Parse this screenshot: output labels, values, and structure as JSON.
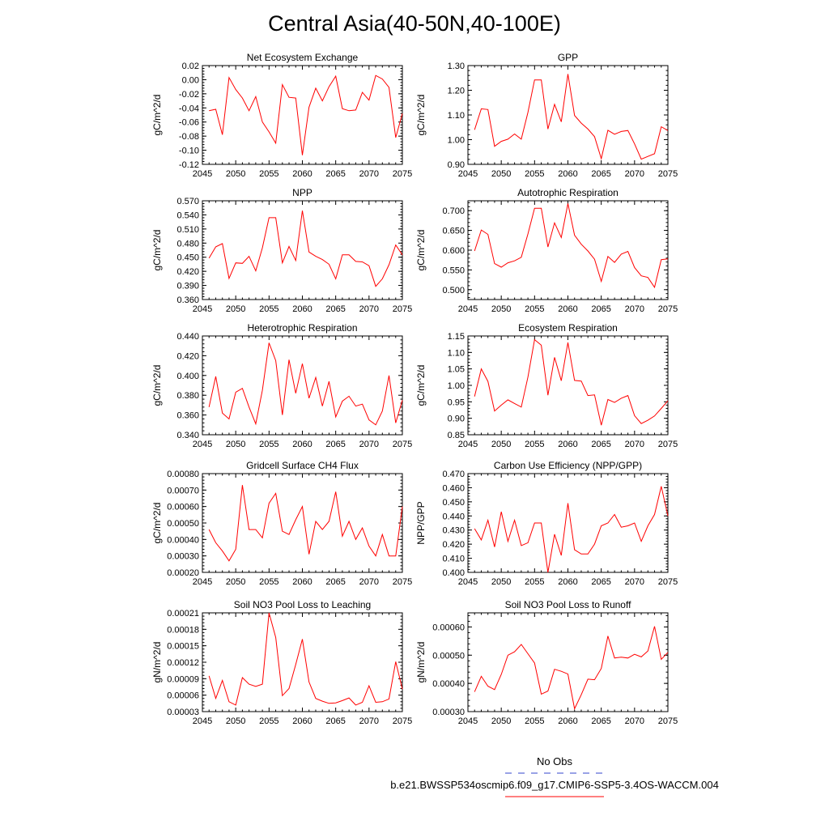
{
  "figure_title": "Central Asia(40-50N,40-100E)",
  "legend": {
    "obs_label": "No Obs",
    "obs_color": "#3344cc",
    "model_label": "b.e21.BWSSP534oscmip6.f09_g17.CMIP6-SSP5-3.4OS-WACCM.004",
    "model_color": "#ff0000"
  },
  "chart_data": [
    {
      "type": "line",
      "title": "Net Ecosystem Exchange",
      "ylabel": "gC/m^2/d",
      "xlim": [
        2045,
        2075
      ],
      "ylim": [
        -0.12,
        0.02
      ],
      "xticks": [
        2045,
        2050,
        2055,
        2060,
        2065,
        2070,
        2075
      ],
      "xtick_labels": [
        "2045",
        "2050",
        "2055",
        "2060",
        "2065",
        "2070",
        "2075"
      ],
      "yticks": [
        -0.12,
        -0.1,
        -0.08,
        -0.06,
        -0.04,
        -0.02,
        0.0,
        0.02
      ],
      "ytick_labels": [
        "-0.12",
        "-0.10",
        "-0.08",
        "-0.06",
        "-0.04",
        "-0.02",
        "0.00",
        "0.02"
      ],
      "x": [
        2046,
        2047,
        2048,
        2049,
        2050,
        2051,
        2052,
        2053,
        2054,
        2055,
        2056,
        2057,
        2058,
        2059,
        2060,
        2061,
        2062,
        2063,
        2064,
        2065,
        2066,
        2067,
        2068,
        2069,
        2070,
        2071,
        2072,
        2073,
        2074,
        2075
      ],
      "y": [
        -0.044,
        -0.042,
        -0.078,
        0.003,
        -0.014,
        -0.026,
        -0.044,
        -0.024,
        -0.06,
        -0.074,
        -0.09,
        -0.007,
        -0.025,
        -0.026,
        -0.107,
        -0.039,
        -0.012,
        -0.03,
        -0.01,
        0.005,
        -0.041,
        -0.044,
        -0.043,
        -0.018,
        -0.029,
        0.006,
        0.001,
        -0.011,
        -0.082,
        -0.048
      ]
    },
    {
      "type": "line",
      "title": "GPP",
      "ylabel": "gC/m^2/d",
      "xlim": [
        2045,
        2075
      ],
      "ylim": [
        0.9,
        1.3
      ],
      "xticks": [
        2045,
        2050,
        2055,
        2060,
        2065,
        2070,
        2075
      ],
      "xtick_labels": [
        "2045",
        "2050",
        "2055",
        "2060",
        "2065",
        "2070",
        "2075"
      ],
      "yticks": [
        0.9,
        1.0,
        1.1,
        1.2,
        1.3
      ],
      "ytick_labels": [
        "0.90",
        "1.00",
        "1.10",
        "1.20",
        "1.30"
      ],
      "x": [
        2046,
        2047,
        2048,
        2049,
        2050,
        2051,
        2052,
        2053,
        2054,
        2055,
        2056,
        2057,
        2058,
        2059,
        2060,
        2061,
        2062,
        2063,
        2064,
        2065,
        2066,
        2067,
        2068,
        2069,
        2070,
        2071,
        2072,
        2073,
        2074,
        2075
      ],
      "y": [
        1.04,
        1.125,
        1.122,
        0.973,
        0.993,
        1.002,
        1.023,
        1.002,
        1.11,
        1.242,
        1.242,
        1.043,
        1.143,
        1.072,
        1.266,
        1.098,
        1.067,
        1.043,
        1.012,
        0.923,
        1.038,
        1.022,
        1.033,
        1.037,
        0.983,
        0.921,
        0.932,
        0.943,
        1.052,
        1.037
      ]
    },
    {
      "type": "line",
      "title": "NPP",
      "ylabel": "gC/m^2/d",
      "xlim": [
        2045,
        2075
      ],
      "ylim": [
        0.36,
        0.57
      ],
      "xticks": [
        2045,
        2050,
        2055,
        2060,
        2065,
        2070,
        2075
      ],
      "xtick_labels": [
        "2045",
        "2050",
        "2055",
        "2060",
        "2065",
        "2070",
        "2075"
      ],
      "yticks": [
        0.36,
        0.39,
        0.42,
        0.45,
        0.48,
        0.51,
        0.54,
        0.57
      ],
      "ytick_labels": [
        "0.360",
        "0.390",
        "0.420",
        "0.450",
        "0.480",
        "0.510",
        "0.540",
        "0.570"
      ],
      "x": [
        2046,
        2047,
        2048,
        2049,
        2050,
        2051,
        2052,
        2053,
        2054,
        2055,
        2056,
        2057,
        2058,
        2059,
        2060,
        2061,
        2062,
        2063,
        2064,
        2065,
        2066,
        2067,
        2068,
        2069,
        2070,
        2071,
        2072,
        2073,
        2074,
        2075
      ],
      "y": [
        0.448,
        0.472,
        0.479,
        0.405,
        0.438,
        0.437,
        0.452,
        0.421,
        0.47,
        0.534,
        0.534,
        0.438,
        0.473,
        0.443,
        0.549,
        0.461,
        0.452,
        0.445,
        0.435,
        0.404,
        0.455,
        0.455,
        0.441,
        0.44,
        0.432,
        0.388,
        0.404,
        0.434,
        0.476,
        0.455
      ]
    },
    {
      "type": "line",
      "title": "Autotrophic Respiration",
      "ylabel": "gC/m^2/d",
      "xlim": [
        2045,
        2075
      ],
      "ylim": [
        0.475,
        0.725
      ],
      "xticks": [
        2045,
        2050,
        2055,
        2060,
        2065,
        2070,
        2075
      ],
      "xtick_labels": [
        "2045",
        "2050",
        "2055",
        "2060",
        "2065",
        "2070",
        "2075"
      ],
      "yticks": [
        0.5,
        0.55,
        0.6,
        0.65,
        0.7
      ],
      "ytick_labels": [
        "0.500",
        "0.550",
        "0.600",
        "0.650",
        "0.700"
      ],
      "x": [
        2046,
        2047,
        2048,
        2049,
        2050,
        2051,
        2052,
        2053,
        2054,
        2055,
        2056,
        2057,
        2058,
        2059,
        2060,
        2061,
        2062,
        2063,
        2064,
        2065,
        2066,
        2067,
        2068,
        2069,
        2070,
        2071,
        2072,
        2073,
        2074,
        2075
      ],
      "y": [
        0.598,
        0.651,
        0.64,
        0.566,
        0.557,
        0.568,
        0.573,
        0.582,
        0.641,
        0.706,
        0.706,
        0.608,
        0.669,
        0.632,
        0.718,
        0.638,
        0.615,
        0.598,
        0.577,
        0.521,
        0.584,
        0.569,
        0.59,
        0.597,
        0.556,
        0.535,
        0.531,
        0.506,
        0.576,
        0.578
      ]
    },
    {
      "type": "line",
      "title": "Heterotrophic Respiration",
      "ylabel": "gC/m^2/d",
      "xlim": [
        2045,
        2075
      ],
      "ylim": [
        0.34,
        0.44
      ],
      "xticks": [
        2045,
        2050,
        2055,
        2060,
        2065,
        2070,
        2075
      ],
      "xtick_labels": [
        "2045",
        "2050",
        "2055",
        "2060",
        "2065",
        "2070",
        "2075"
      ],
      "yticks": [
        0.34,
        0.36,
        0.38,
        0.4,
        0.42,
        0.44
      ],
      "ytick_labels": [
        "0.340",
        "0.360",
        "0.380",
        "0.400",
        "0.420",
        "0.440"
      ],
      "x": [
        2046,
        2047,
        2048,
        2049,
        2050,
        2051,
        2052,
        2053,
        2054,
        2055,
        2056,
        2057,
        2058,
        2059,
        2060,
        2061,
        2062,
        2063,
        2064,
        2065,
        2066,
        2067,
        2068,
        2069,
        2070,
        2071,
        2072,
        2073,
        2074,
        2075
      ],
      "y": [
        0.368,
        0.399,
        0.362,
        0.356,
        0.383,
        0.387,
        0.368,
        0.351,
        0.385,
        0.433,
        0.415,
        0.36,
        0.416,
        0.382,
        0.412,
        0.377,
        0.398,
        0.369,
        0.394,
        0.358,
        0.374,
        0.379,
        0.369,
        0.371,
        0.355,
        0.35,
        0.364,
        0.4,
        0.352,
        0.375
      ]
    },
    {
      "type": "line",
      "title": "Ecosystem Respiration",
      "ylabel": "gC/m^2/d",
      "xlim": [
        2045,
        2075
      ],
      "ylim": [
        0.85,
        1.15
      ],
      "xticks": [
        2045,
        2050,
        2055,
        2060,
        2065,
        2070,
        2075
      ],
      "xtick_labels": [
        "2045",
        "2050",
        "2055",
        "2060",
        "2065",
        "2070",
        "2075"
      ],
      "yticks": [
        0.85,
        0.9,
        0.95,
        1.0,
        1.05,
        1.1,
        1.15
      ],
      "ytick_labels": [
        "0.85",
        "0.90",
        "0.95",
        "1.00",
        "1.05",
        "1.10",
        "1.15"
      ],
      "x": [
        2046,
        2047,
        2048,
        2049,
        2050,
        2051,
        2052,
        2053,
        2054,
        2055,
        2056,
        2057,
        2058,
        2059,
        2060,
        2061,
        2062,
        2063,
        2064,
        2065,
        2066,
        2067,
        2068,
        2069,
        2070,
        2071,
        2072,
        2073,
        2074,
        2075
      ],
      "y": [
        0.966,
        1.05,
        1.012,
        0.922,
        0.94,
        0.956,
        0.945,
        0.934,
        1.025,
        1.139,
        1.122,
        0.97,
        1.085,
        1.014,
        1.13,
        1.015,
        1.013,
        0.969,
        0.971,
        0.879,
        0.957,
        0.948,
        0.961,
        0.969,
        0.908,
        0.884,
        0.894,
        0.907,
        0.93,
        0.953
      ]
    },
    {
      "type": "line",
      "title": "Gridcell Surface CH4 Flux",
      "ylabel": "gC/m^2/d",
      "xlim": [
        2045,
        2075
      ],
      "ylim": [
        0.0002,
        0.0008
      ],
      "xticks": [
        2045,
        2050,
        2055,
        2060,
        2065,
        2070,
        2075
      ],
      "xtick_labels": [
        "2045",
        "2050",
        "2055",
        "2060",
        "2065",
        "2070",
        "2075"
      ],
      "yticks": [
        0.0002,
        0.0003,
        0.0004,
        0.0005,
        0.0006,
        0.0007,
        0.0008
      ],
      "ytick_labels": [
        "0.00020",
        "0.00030",
        "0.00040",
        "0.00050",
        "0.00060",
        "0.00070",
        "0.00080"
      ],
      "x": [
        2046,
        2047,
        2048,
        2049,
        2050,
        2051,
        2052,
        2053,
        2054,
        2055,
        2056,
        2057,
        2058,
        2059,
        2060,
        2061,
        2062,
        2063,
        2064,
        2065,
        2066,
        2067,
        2068,
        2069,
        2070,
        2071,
        2072,
        2073,
        2074,
        2075
      ],
      "y": [
        0.00046,
        0.00038,
        0.00033,
        0.00027,
        0.00034,
        0.00073,
        0.00046,
        0.00046,
        0.00041,
        0.00062,
        0.00068,
        0.00045,
        0.00043,
        0.00052,
        0.0006,
        0.00031,
        0.00051,
        0.00046,
        0.00051,
        0.00069,
        0.00042,
        0.00051,
        0.0004,
        0.00047,
        0.00036,
        0.0003,
        0.00043,
        0.0003,
        0.0003,
        0.0006
      ]
    },
    {
      "type": "line",
      "title": "Carbon Use Efficiency (NPP/GPP)",
      "ylabel": "NPP/GPP",
      "xlim": [
        2045,
        2075
      ],
      "ylim": [
        0.4,
        0.47
      ],
      "xticks": [
        2045,
        2050,
        2055,
        2060,
        2065,
        2070,
        2075
      ],
      "xtick_labels": [
        "2045",
        "2050",
        "2055",
        "2060",
        "2065",
        "2070",
        "2075"
      ],
      "yticks": [
        0.4,
        0.41,
        0.42,
        0.43,
        0.44,
        0.45,
        0.46,
        0.47
      ],
      "ytick_labels": [
        "0.400",
        "0.410",
        "0.420",
        "0.430",
        "0.440",
        "0.450",
        "0.460",
        "0.470"
      ],
      "x": [
        2046,
        2047,
        2048,
        2049,
        2050,
        2051,
        2052,
        2053,
        2054,
        2055,
        2056,
        2057,
        2058,
        2059,
        2060,
        2061,
        2062,
        2063,
        2064,
        2065,
        2066,
        2067,
        2068,
        2069,
        2070,
        2071,
        2072,
        2073,
        2074,
        2075
      ],
      "y": [
        0.431,
        0.423,
        0.437,
        0.418,
        0.443,
        0.422,
        0.437,
        0.419,
        0.421,
        0.435,
        0.435,
        0.4,
        0.427,
        0.412,
        0.449,
        0.416,
        0.413,
        0.413,
        0.42,
        0.433,
        0.435,
        0.441,
        0.432,
        0.433,
        0.435,
        0.422,
        0.433,
        0.441,
        0.461,
        0.44
      ]
    },
    {
      "type": "line",
      "title": "Soil NO3 Pool Loss to Leaching",
      "ylabel": "gN/m^2/d",
      "xlim": [
        2045,
        2075
      ],
      "ylim": [
        3e-05,
        0.00021
      ],
      "xticks": [
        2045,
        2050,
        2055,
        2060,
        2065,
        2070,
        2075
      ],
      "xtick_labels": [
        "2045",
        "2050",
        "2055",
        "2060",
        "2065",
        "2070",
        "2075"
      ],
      "yticks": [
        3e-05,
        6e-05,
        9e-05,
        0.00012,
        0.00015,
        0.00018,
        0.00021
      ],
      "ytick_labels": [
        "0.00003",
        "0.00006",
        "0.00009",
        "0.00012",
        "0.00015",
        "0.00018",
        "0.00021"
      ],
      "x": [
        2046,
        2047,
        2048,
        2049,
        2050,
        2051,
        2052,
        2053,
        2054,
        2055,
        2056,
        2057,
        2058,
        2059,
        2060,
        2061,
        2062,
        2063,
        2064,
        2065,
        2066,
        2067,
        2068,
        2069,
        2070,
        2071,
        2072,
        2073,
        2074,
        2075
      ],
      "y": [
        9.5e-05,
        5.4e-05,
        8.7e-05,
        4.8e-05,
        4.2e-05,
        9.2e-05,
        8e-05,
        7.6e-05,
        8e-05,
        0.00021,
        0.000165,
        5.9e-05,
        7.2e-05,
        0.000116,
        0.000162,
        8.4e-05,
        5.4e-05,
        4.9e-05,
        4.5e-05,
        4.6e-05,
        5e-05,
        5.5e-05,
        4.2e-05,
        4.7e-05,
        7.7e-05,
        4.7e-05,
        4.8e-05,
        5.3e-05,
        0.000121,
        7.1e-05
      ]
    },
    {
      "type": "line",
      "title": "Soil NO3 Pool Loss to Runoff",
      "ylabel": "gN/m^2/d",
      "xlim": [
        2045,
        2075
      ],
      "ylim": [
        0.0003,
        0.00065
      ],
      "xticks": [
        2045,
        2050,
        2055,
        2060,
        2065,
        2070,
        2075
      ],
      "xtick_labels": [
        "2045",
        "2050",
        "2055",
        "2060",
        "2065",
        "2070",
        "2075"
      ],
      "yticks": [
        0.0003,
        0.0004,
        0.0005,
        0.0006
      ],
      "ytick_labels": [
        "0.00030",
        "0.00040",
        "0.00050",
        "0.00060"
      ],
      "x": [
        2046,
        2047,
        2048,
        2049,
        2050,
        2051,
        2052,
        2053,
        2054,
        2055,
        2056,
        2057,
        2058,
        2059,
        2060,
        2061,
        2062,
        2063,
        2064,
        2065,
        2066,
        2067,
        2068,
        2069,
        2070,
        2071,
        2072,
        2073,
        2074,
        2075
      ],
      "y": [
        0.00037,
        0.000425,
        0.00039,
        0.000378,
        0.000432,
        0.0005,
        0.000512,
        0.000538,
        0.000505,
        0.000472,
        0.000362,
        0.000373,
        0.00045,
        0.000443,
        0.000433,
        0.00031,
        0.00036,
        0.000415,
        0.000413,
        0.000453,
        0.000568,
        0.00049,
        0.000493,
        0.00049,
        0.000503,
        0.000494,
        0.000515,
        0.000602,
        0.000485,
        0.00051
      ]
    }
  ]
}
